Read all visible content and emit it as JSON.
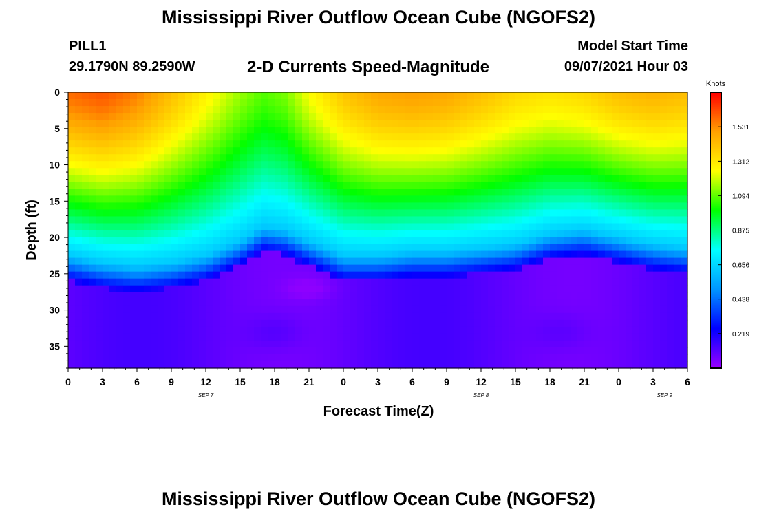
{
  "header": {
    "title": "Mississippi River Outflow Ocean Cube (NGOFS2)",
    "station": "PILL1",
    "coordinates": "29.1790N  89.2590W",
    "subtitle": "2-D Currents Speed-Magnitude",
    "model_start_label": "Model Start Time",
    "model_start_value": "09/07/2021 Hour 03"
  },
  "footer": {
    "title": "Mississippi River Outflow Ocean Cube (NGOFS2)"
  },
  "chart_data": {
    "type": "heatmap",
    "ylabel": "Depth (ft)",
    "xlabel": "Forecast Time(Z)",
    "y_inverted": true,
    "ylim": [
      0,
      38
    ],
    "y_ticks": [
      0,
      5,
      10,
      15,
      20,
      25,
      30,
      35
    ],
    "xlim": [
      0,
      54
    ],
    "x_ticks": [
      0,
      3,
      6,
      9,
      12,
      15,
      18,
      21,
      24,
      27,
      30,
      33,
      36,
      39,
      42,
      45,
      48,
      51,
      54
    ],
    "x_tick_labels": [
      "0",
      "3",
      "6",
      "9",
      "12",
      "15",
      "18",
      "21",
      "0",
      "3",
      "6",
      "9",
      "12",
      "15",
      "18",
      "21",
      "0",
      "3",
      "6"
    ],
    "date_labels": [
      {
        "x": 12,
        "text": "SEP 7"
      },
      {
        "x": 36,
        "text": "SEP 8"
      },
      {
        "x": 52,
        "text": "SEP 9"
      }
    ],
    "colorbar": {
      "label": "Knots",
      "range": [
        0,
        1.75
      ],
      "ticks": [
        0.219,
        0.438,
        0.656,
        0.875,
        1.094,
        1.312,
        1.531
      ],
      "tick_labels": [
        "0.219",
        "0.438",
        "0.656",
        "0.875",
        "1.094",
        "1.312",
        "1.531"
      ]
    },
    "surface_speed_knots": {
      "x": [
        0,
        3,
        6,
        9,
        12,
        15,
        17,
        19,
        21,
        24,
        27,
        30,
        33,
        36,
        39,
        42,
        45,
        48,
        51,
        54
      ],
      "values": [
        1.58,
        1.62,
        1.55,
        1.42,
        1.28,
        1.15,
        1.08,
        1.12,
        1.25,
        1.4,
        1.48,
        1.5,
        1.48,
        1.42,
        1.35,
        1.32,
        1.35,
        1.42,
        1.45,
        1.42
      ]
    },
    "green_layer_base_depth_ft": {
      "x": [
        0,
        3,
        6,
        9,
        12,
        15,
        17,
        19,
        21,
        24,
        27,
        30,
        33,
        36,
        39,
        42,
        45,
        48,
        51,
        54
      ],
      "values": [
        22.5,
        23.5,
        24,
        23.5,
        22.5,
        20.5,
        18.5,
        19,
        20.5,
        22.5,
        22.5,
        22,
        22,
        21.5,
        21,
        19.5,
        19,
        20,
        21,
        21.5
      ]
    },
    "colors": {
      "scale": [
        "#9a00ff",
        "#0000ff",
        "#0096ff",
        "#00ffff",
        "#00ff00",
        "#ffff00",
        "#ffa000",
        "#ff0000"
      ],
      "axes": "#000000",
      "background": "#ffffff"
    }
  }
}
